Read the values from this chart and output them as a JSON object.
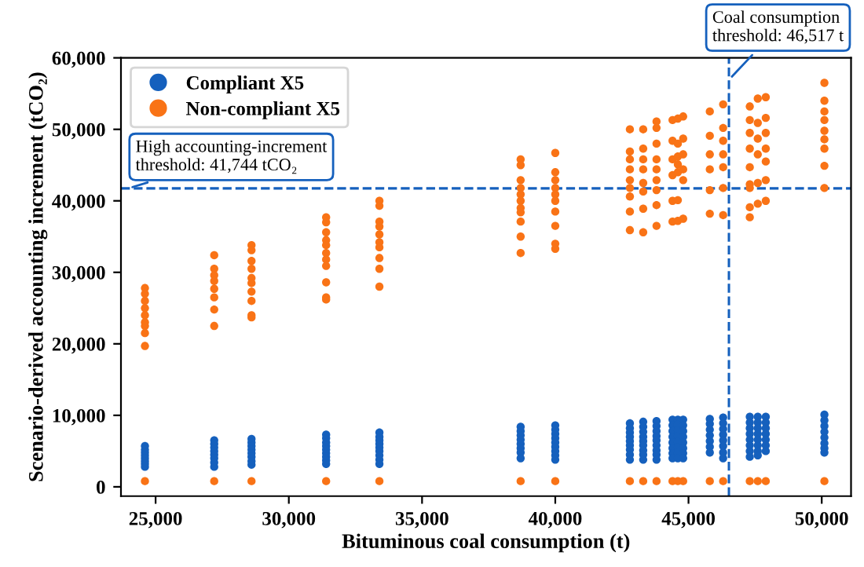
{
  "chart_data": {
    "type": "scatter",
    "xlabel": "Bituminous coal consumption (t)",
    "ylabel": "Scenario-derived accounting increment (tCO₂)",
    "xlim": [
      23700,
      51100
    ],
    "xticks": [
      {
        "value": 25000,
        "label": "25,000"
      },
      {
        "value": 30000,
        "label": "30,000"
      },
      {
        "value": 35000,
        "label": "35,000"
      },
      {
        "value": 40000,
        "label": "40,000"
      },
      {
        "value": 45000,
        "label": "45,000"
      },
      {
        "value": 50000,
        "label": "50,000"
      }
    ],
    "ylim": [
      -1300,
      60000
    ],
    "yticks": [
      0,
      {
        "value": 10000,
        "label": "10,000"
      },
      {
        "value": 20000,
        "label": "20,000"
      },
      {
        "value": 30000,
        "label": "30,000"
      },
      {
        "value": 40000,
        "label": "40,000"
      },
      {
        "value": 50000,
        "label": "50,000"
      },
      {
        "value": 60000,
        "label": "60,000"
      }
    ],
    "grid": false,
    "legend": "top left",
    "marker": "circle",
    "series": [
      {
        "name": "Compliant X5",
        "color": "#1560bd",
        "x": [
          24600,
          24600,
          24600,
          24600,
          24600,
          24600,
          24600,
          24600,
          27200,
          27200,
          27200,
          27200,
          27200,
          27200,
          27200,
          27200,
          28600,
          28600,
          28600,
          28600,
          28600,
          28600,
          28600,
          28600,
          31400,
          31400,
          31400,
          31400,
          31400,
          31400,
          31400,
          31400,
          31400,
          33400,
          33400,
          33400,
          33400,
          33400,
          33400,
          33400,
          33400,
          33400,
          38700,
          38700,
          38700,
          38700,
          38700,
          38700,
          38700,
          38700,
          40000,
          40000,
          40000,
          40000,
          40000,
          40000,
          40000,
          40000,
          40000,
          42800,
          42800,
          42800,
          42800,
          42800,
          42800,
          42800,
          42800,
          42800,
          43300,
          43300,
          43300,
          43300,
          43300,
          43300,
          43300,
          43300,
          43300,
          43800,
          43800,
          43800,
          43800,
          43800,
          43800,
          43800,
          43800,
          43800,
          44400,
          44400,
          44400,
          44400,
          44400,
          44400,
          44400,
          44400,
          44600,
          44600,
          44600,
          44600,
          44600,
          44600,
          44600,
          44600,
          44800,
          44800,
          44800,
          44800,
          44800,
          44800,
          44800,
          44800,
          45800,
          45800,
          45800,
          45800,
          45800,
          45800,
          45800,
          46300,
          46300,
          46300,
          46300,
          46300,
          46300,
          46300,
          46300,
          47300,
          47300,
          47300,
          47300,
          47300,
          47300,
          47300,
          47300,
          47600,
          47600,
          47600,
          47600,
          47600,
          47600,
          47600,
          47600,
          47900,
          47900,
          47900,
          47900,
          47900,
          47900,
          47900,
          50100,
          50100,
          50100,
          50100,
          50100,
          50100,
          50100,
          50100
        ],
        "values": [
          5700,
          5200,
          4800,
          4400,
          4000,
          3600,
          3200,
          2800,
          6500,
          6000,
          5500,
          5000,
          4500,
          4000,
          3400,
          2800,
          6700,
          6200,
          5700,
          5200,
          4700,
          4200,
          3600,
          3100,
          7300,
          6800,
          6200,
          5700,
          5200,
          4700,
          4200,
          3700,
          3200,
          7600,
          7000,
          6500,
          6000,
          5500,
          5000,
          4400,
          3800,
          3200,
          8400,
          7800,
          7200,
          6600,
          6000,
          5400,
          4800,
          4000,
          8600,
          8000,
          7400,
          6800,
          6200,
          5600,
          5000,
          4400,
          3800,
          8900,
          8200,
          7600,
          7000,
          6400,
          5800,
          5200,
          4500,
          3800,
          9100,
          8400,
          7700,
          7000,
          6400,
          5800,
          5100,
          4500,
          3800,
          9200,
          8500,
          7800,
          7100,
          6500,
          5800,
          5100,
          4500,
          3800,
          9400,
          8600,
          7800,
          7000,
          6200,
          5400,
          4700,
          4000,
          9400,
          8700,
          7900,
          7100,
          6300,
          5500,
          4800,
          4000,
          9400,
          8600,
          7800,
          7000,
          6200,
          5400,
          4700,
          4000,
          9500,
          8800,
          8000,
          7200,
          6400,
          5600,
          4800,
          9700,
          8900,
          8100,
          7300,
          6500,
          5700,
          4800,
          4000,
          9800,
          9000,
          8200,
          7400,
          6600,
          5800,
          5000,
          4200,
          9800,
          9000,
          8200,
          7400,
          6600,
          5800,
          5000,
          4400,
          9800,
          9000,
          8200,
          7400,
          6600,
          5800,
          5000,
          10100,
          9300,
          8500,
          7700,
          6900,
          6100,
          5400,
          4800
        ]
      },
      {
        "name": "Non-compliant X5",
        "color": "#f97316",
        "x": [
          24600,
          24600,
          24600,
          24600,
          24600,
          24600,
          24600,
          24600,
          24600,
          24600,
          27200,
          27200,
          27200,
          27200,
          27200,
          27200,
          27200,
          27200,
          27200,
          28600,
          28600,
          28600,
          28600,
          28600,
          28600,
          28600,
          28600,
          28600,
          28600,
          28600,
          31400,
          31400,
          31400,
          31400,
          31400,
          31400,
          31400,
          31400,
          31400,
          31400,
          31400,
          31400,
          33400,
          33400,
          33400,
          33400,
          33400,
          33400,
          33400,
          33400,
          33400,
          33400,
          33400,
          38700,
          38700,
          38700,
          38700,
          38700,
          38700,
          38700,
          38700,
          38700,
          38700,
          38700,
          38700,
          40000,
          40000,
          40000,
          40000,
          40000,
          40000,
          40000,
          40000,
          40000,
          40000,
          40000,
          42800,
          42800,
          42800,
          42800,
          42800,
          42800,
          42800,
          42800,
          42800,
          42800,
          43300,
          43300,
          43300,
          43300,
          43300,
          43300,
          43300,
          43300,
          43300,
          43800,
          43800,
          43800,
          43800,
          43800,
          43800,
          43800,
          43800,
          43800,
          43800,
          44400,
          44400,
          44400,
          44400,
          44400,
          44400,
          44400,
          44600,
          44600,
          44600,
          44600,
          44600,
          44600,
          44600,
          44600,
          44800,
          44800,
          44800,
          44800,
          44800,
          44800,
          44800,
          45800,
          45800,
          45800,
          45800,
          45800,
          45800,
          45800,
          46300,
          46300,
          46300,
          46300,
          46300,
          46300,
          46300,
          46300,
          47300,
          47300,
          47300,
          47300,
          47300,
          47300,
          47300,
          47300,
          47300,
          47300,
          47600,
          47600,
          47600,
          47600,
          47600,
          47600,
          47600,
          47900,
          47900,
          47900,
          47900,
          47900,
          47900,
          47900,
          47900,
          50100,
          50100,
          50100,
          50100,
          50100,
          50100,
          50100,
          50100,
          50100,
          50100
        ],
        "values": [
          27800,
          27000,
          26000,
          25000,
          24000,
          23000,
          22500,
          21500,
          19700,
          800,
          32400,
          30500,
          29600,
          28800,
          27700,
          26500,
          24800,
          22500,
          800,
          33800,
          33100,
          31600,
          30500,
          29200,
          28500,
          27300,
          26000,
          24000,
          23700,
          800,
          37700,
          37000,
          35600,
          34500,
          33800,
          32700,
          31800,
          30900,
          28600,
          26500,
          26200,
          800,
          40000,
          39300,
          37100,
          36400,
          35300,
          34200,
          33500,
          32000,
          30500,
          28000,
          800,
          45800,
          45000,
          42900,
          41800,
          40900,
          40000,
          39000,
          38400,
          37100,
          35000,
          32700,
          800,
          46700,
          44000,
          42900,
          41800,
          40900,
          40000,
          38500,
          36500,
          34000,
          33300,
          800,
          50000,
          46900,
          45800,
          44400,
          42900,
          41800,
          40600,
          38500,
          35900,
          800,
          50000,
          47300,
          45800,
          44400,
          42500,
          41300,
          38900,
          35600,
          800,
          51100,
          50200,
          48000,
          45800,
          44400,
          42900,
          41500,
          39400,
          36500,
          800,
          51300,
          48400,
          45800,
          43600,
          40000,
          37100,
          800,
          51500,
          48000,
          46200,
          45100,
          44000,
          40100,
          37200,
          800,
          51800,
          48700,
          46500,
          44400,
          42900,
          37500,
          800,
          52500,
          49100,
          46500,
          44400,
          41500,
          38200,
          800,
          53500,
          50200,
          48400,
          46500,
          44700,
          41800,
          38000,
          800,
          53200,
          51300,
          49500,
          47300,
          44700,
          42300,
          41800,
          39100,
          37700,
          800,
          54300,
          50900,
          48700,
          46500,
          42500,
          39600,
          800,
          54500,
          51600,
          49500,
          47300,
          45500,
          42900,
          40000,
          800,
          56500,
          54000,
          52500,
          51300,
          49800,
          48600,
          47300,
          44900,
          41800,
          800
        ]
      }
    ],
    "ref_lines": [
      {
        "axis": "y",
        "value": 41744,
        "label": "High accounting-increment\nthreshold: 41,744 tCO₂",
        "color": "#1560bd",
        "line_style": "dashed"
      },
      {
        "axis": "x",
        "value": 46517,
        "label": "Coal consumption\nthreshold: 46,517 t",
        "color": "#1560bd",
        "line_style": "dashed"
      }
    ]
  }
}
